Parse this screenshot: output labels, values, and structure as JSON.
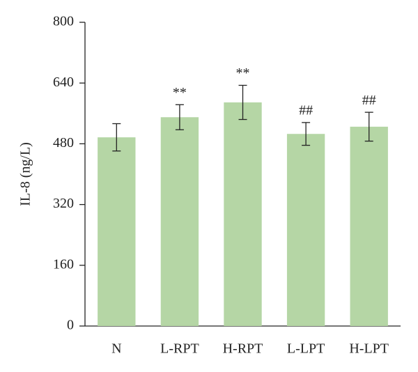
{
  "chart_data": {
    "type": "bar",
    "ylabel": "IL-8 (ng/L)",
    "categories": [
      "N",
      "L-RPT",
      "H-RPT",
      "L-LPT",
      "H-LPT"
    ],
    "values": [
      497,
      550,
      589,
      506,
      525
    ],
    "errors": [
      36,
      33,
      45,
      30,
      38
    ],
    "annotations": [
      null,
      "**",
      "**",
      "##",
      "##"
    ],
    "color": "#b5d6a5",
    "ylim": [
      0,
      800
    ],
    "yticks": [
      0,
      160,
      320,
      480,
      640,
      800
    ],
    "grid": false
  }
}
